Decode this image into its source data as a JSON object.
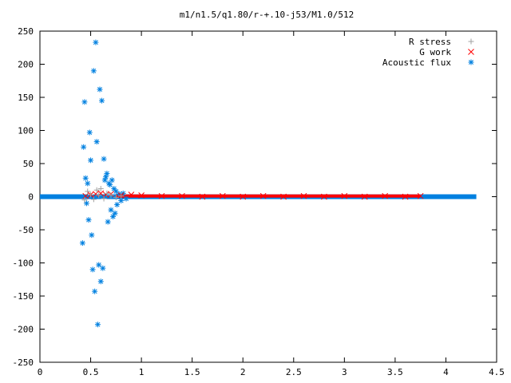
{
  "chart_data": {
    "type": "scatter",
    "title": "m1/n1.5/q1.80/r-+.10-j53/M1.0/512",
    "xlabel": "",
    "ylabel": "",
    "xlim": [
      0,
      4.5
    ],
    "ylim": [
      -250,
      250
    ],
    "x_ticks": [
      "0",
      "0.5",
      "1",
      "1.5",
      "2",
      "2.5",
      "3",
      "3.5",
      "4",
      "4.5"
    ],
    "x_tick_values": [
      0,
      0.5,
      1,
      1.5,
      2,
      2.5,
      3,
      3.5,
      4,
      4.5
    ],
    "y_ticks": [
      "-250",
      "-200",
      "-150",
      "-100",
      "-50",
      "0",
      "50",
      "100",
      "150",
      "200",
      "250"
    ],
    "y_tick_values": [
      -250,
      -200,
      -150,
      -100,
      -50,
      0,
      50,
      100,
      150,
      200,
      250
    ],
    "grid": false,
    "legend_position": "top-right",
    "series": [
      {
        "name": "R stress",
        "marker": "plus",
        "color": "#a0a0a0",
        "x": [
          0.44,
          0.47,
          0.5,
          0.53,
          0.56,
          0.58,
          0.6,
          0.63,
          0.66,
          0.7,
          0.75,
          0.8
        ],
        "y": [
          -5,
          8,
          3,
          -4,
          10,
          2,
          12,
          -3,
          5,
          2,
          -1,
          1
        ]
      },
      {
        "name": "G work",
        "marker": "cross",
        "color": "#ff0000",
        "x": [
          0.45,
          0.5,
          0.55,
          0.6,
          0.65,
          0.7,
          0.8,
          0.9,
          1.0,
          1.2,
          1.4,
          1.6,
          1.8,
          2.0,
          2.2,
          2.4,
          2.6,
          2.8,
          3.0,
          3.2,
          3.4,
          3.6,
          3.75
        ],
        "y": [
          1,
          3,
          4,
          5,
          3,
          4,
          2,
          3,
          2,
          1,
          1,
          0,
          1,
          0,
          1,
          0,
          1,
          0,
          1,
          0,
          1,
          0,
          1
        ]
      },
      {
        "name": "Acoustic flux",
        "marker": "star",
        "color": "#0080e0",
        "x": [
          0.42,
          0.43,
          0.44,
          0.45,
          0.46,
          0.47,
          0.48,
          0.49,
          0.5,
          0.51,
          0.52,
          0.53,
          0.54,
          0.55,
          0.56,
          0.57,
          0.58,
          0.59,
          0.6,
          0.61,
          0.62,
          0.63,
          0.64,
          0.65,
          0.66,
          0.67,
          0.68,
          0.69,
          0.7,
          0.71,
          0.72,
          0.73,
          0.74,
          0.75,
          0.76,
          0.78,
          0.8,
          0.82,
          0.85
        ],
        "y": [
          -70,
          75,
          143,
          28,
          -10,
          20,
          -35,
          97,
          55,
          -58,
          -110,
          190,
          -143,
          233,
          83,
          -193,
          -103,
          162,
          -128,
          145,
          -108,
          57,
          25,
          30,
          35,
          -38,
          20,
          18,
          -20,
          25,
          -30,
          12,
          -25,
          8,
          -12,
          4,
          -6,
          5,
          -3
        ]
      }
    ]
  }
}
